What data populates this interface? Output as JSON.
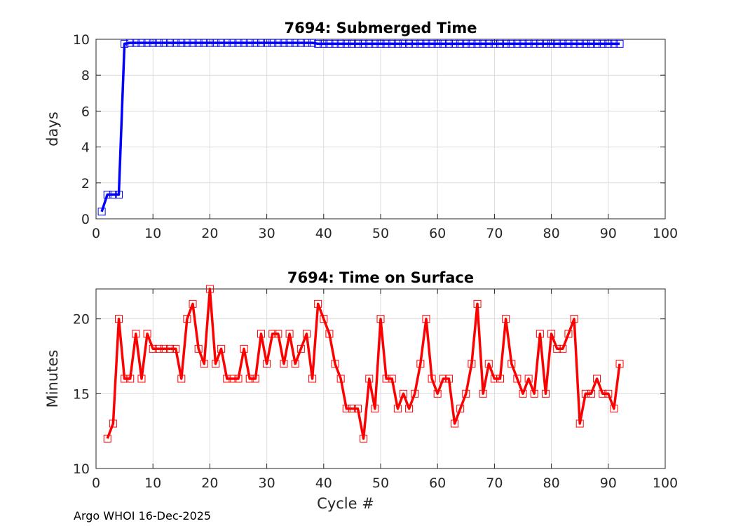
{
  "chart_data": [
    {
      "type": "line",
      "title": "7694: Submerged Time",
      "xlabel": "",
      "ylabel": "days",
      "xlim": [
        0,
        100
      ],
      "ylim": [
        0,
        10
      ],
      "xticks": [
        0,
        10,
        20,
        30,
        40,
        50,
        60,
        70,
        80,
        90,
        100
      ],
      "yticks": [
        0,
        2,
        4,
        6,
        8,
        10
      ],
      "grid": true,
      "color": "#0000ff",
      "marker": "square",
      "x": [
        1,
        2,
        3,
        4,
        5,
        6,
        7,
        8,
        9,
        10,
        11,
        12,
        13,
        14,
        15,
        16,
        17,
        18,
        19,
        20,
        21,
        22,
        23,
        24,
        25,
        26,
        27,
        28,
        29,
        30,
        31,
        32,
        33,
        34,
        35,
        36,
        37,
        38,
        39,
        40,
        41,
        42,
        43,
        44,
        45,
        46,
        47,
        48,
        49,
        50,
        51,
        52,
        53,
        54,
        55,
        56,
        57,
        58,
        59,
        60,
        61,
        62,
        63,
        64,
        65,
        66,
        67,
        68,
        69,
        70,
        71,
        72,
        73,
        74,
        75,
        76,
        77,
        78,
        79,
        80,
        81,
        82,
        83,
        84,
        85,
        86,
        87,
        88,
        89,
        90,
        91,
        92
      ],
      "values": [
        0.4,
        1.35,
        1.35,
        1.35,
        9.75,
        9.8,
        9.8,
        9.8,
        9.8,
        9.8,
        9.8,
        9.8,
        9.8,
        9.8,
        9.8,
        9.8,
        9.8,
        9.8,
        9.8,
        9.8,
        9.8,
        9.8,
        9.8,
        9.8,
        9.8,
        9.8,
        9.8,
        9.8,
        9.8,
        9.8,
        9.8,
        9.8,
        9.8,
        9.8,
        9.8,
        9.8,
        9.8,
        9.8,
        9.75,
        9.75,
        9.75,
        9.75,
        9.75,
        9.75,
        9.75,
        9.75,
        9.75,
        9.75,
        9.75,
        9.75,
        9.75,
        9.75,
        9.75,
        9.75,
        9.75,
        9.75,
        9.75,
        9.75,
        9.75,
        9.75,
        9.75,
        9.75,
        9.75,
        9.75,
        9.75,
        9.75,
        9.75,
        9.75,
        9.75,
        9.75,
        9.75,
        9.75,
        9.75,
        9.75,
        9.75,
        9.75,
        9.75,
        9.75,
        9.75,
        9.75,
        9.75,
        9.75,
        9.75,
        9.75,
        9.75,
        9.75,
        9.75,
        9.75,
        9.75,
        9.75,
        9.75,
        9.75
      ]
    },
    {
      "type": "line",
      "title": "7694: Time on Surface",
      "xlabel": "Cycle #",
      "ylabel": "Minutes",
      "xlim": [
        0,
        100
      ],
      "ylim": [
        10,
        22
      ],
      "xticks": [
        0,
        10,
        20,
        30,
        40,
        50,
        60,
        70,
        80,
        90,
        100
      ],
      "yticks": [
        10,
        15,
        20
      ],
      "grid": true,
      "color": "#ff0000",
      "marker": "square",
      "x": [
        2,
        3,
        4,
        5,
        6,
        7,
        8,
        9,
        10,
        11,
        12,
        13,
        14,
        15,
        16,
        17,
        18,
        19,
        20,
        21,
        22,
        23,
        24,
        25,
        26,
        27,
        28,
        29,
        30,
        31,
        32,
        33,
        34,
        35,
        36,
        37,
        38,
        39,
        40,
        41,
        42,
        43,
        44,
        45,
        46,
        47,
        48,
        49,
        50,
        51,
        52,
        53,
        54,
        55,
        56,
        57,
        58,
        59,
        60,
        61,
        62,
        63,
        64,
        65,
        66,
        67,
        68,
        69,
        70,
        71,
        72,
        73,
        74,
        75,
        76,
        77,
        78,
        79,
        80,
        81,
        82,
        83,
        84,
        85,
        86,
        87,
        88,
        89,
        90,
        91,
        92
      ],
      "values": [
        12,
        13,
        20,
        16,
        16,
        19,
        16,
        19,
        18,
        18,
        18,
        18,
        18,
        16,
        20,
        21,
        18,
        17,
        22,
        17,
        18,
        16,
        16,
        16,
        18,
        16,
        16,
        19,
        17,
        19,
        19,
        17,
        19,
        17,
        18,
        19,
        16,
        21,
        20,
        19,
        17,
        16,
        14,
        14,
        14,
        12,
        16,
        14,
        20,
        16,
        16,
        14,
        15,
        14,
        15,
        17,
        20,
        16,
        15,
        16,
        16,
        13,
        14,
        15,
        17,
        21,
        15,
        17,
        16,
        16,
        20,
        17,
        16,
        15,
        16,
        15,
        19,
        15,
        19,
        18,
        18,
        19,
        20,
        13,
        15,
        15,
        16,
        15,
        15,
        14,
        17
      ]
    }
  ],
  "footer": "Argo WHOI 16-Dec-2025"
}
